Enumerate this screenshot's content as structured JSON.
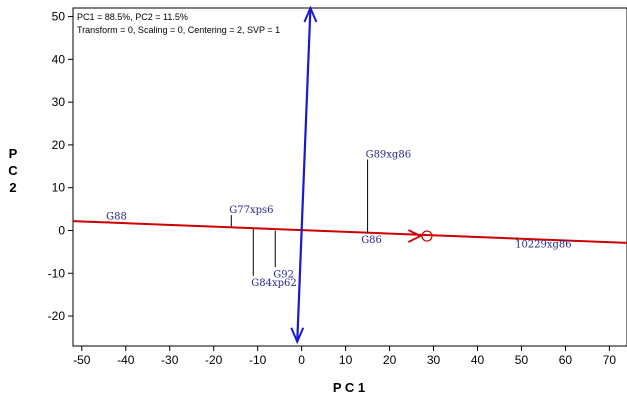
{
  "chart_data": {
    "type": "scatter",
    "title": "",
    "xlabel": "P C 1",
    "ylabel": "P C 2",
    "xlim": [
      -52,
      74
    ],
    "ylim": [
      -27,
      52
    ],
    "x_ticks": [
      -50,
      -40,
      -30,
      -20,
      -10,
      0,
      10,
      20,
      30,
      40,
      50,
      60,
      70
    ],
    "y_ticks": [
      -20,
      -10,
      0,
      10,
      20,
      30,
      40,
      50
    ],
    "annotations": [
      "PC1 = 88.5%, PC2 = 11.5%",
      "Transform = 0, Scaling = 0, Centering = 2, SVP = 1"
    ],
    "points": [
      {
        "label": "G88",
        "x": -44,
        "y": 3.5,
        "line_from_y": 2.2
      },
      {
        "label": "G77xps6",
        "x": -16,
        "y": 5,
        "line_from_y": 0.9
      },
      {
        "label": "G84xp62",
        "x": -11,
        "y": -12,
        "line_from_y": 0.4
      },
      {
        "label": "G92",
        "x": -6,
        "y": -10,
        "line_from_y": 0
      },
      {
        "label": "G86",
        "x": 14,
        "y": -2,
        "line_from_y": -0.5
      },
      {
        "label": "G89xg86",
        "x": 15,
        "y": 18,
        "line_from_y": -0.7
      },
      {
        "label": "10229xg86",
        "x": 49,
        "y": -3,
        "line_from_y": -2.2
      }
    ],
    "red_line": {
      "x": [
        -52,
        74
      ],
      "y": [
        2.2,
        -2.9
      ],
      "color": "#cc0000"
    },
    "red_arrow": {
      "from": [
        0,
        0
      ],
      "to": [
        27,
        -1.3
      ],
      "marker": [
        28.5,
        -1.3
      ]
    },
    "blue_line": {
      "x": [
        -1,
        2
      ],
      "y": [
        -26,
        52
      ],
      "color": "#1a1acc"
    },
    "colors": {
      "red": "#cc0000",
      "blue": "#1a1acc",
      "label": "#2a2a8c"
    }
  }
}
